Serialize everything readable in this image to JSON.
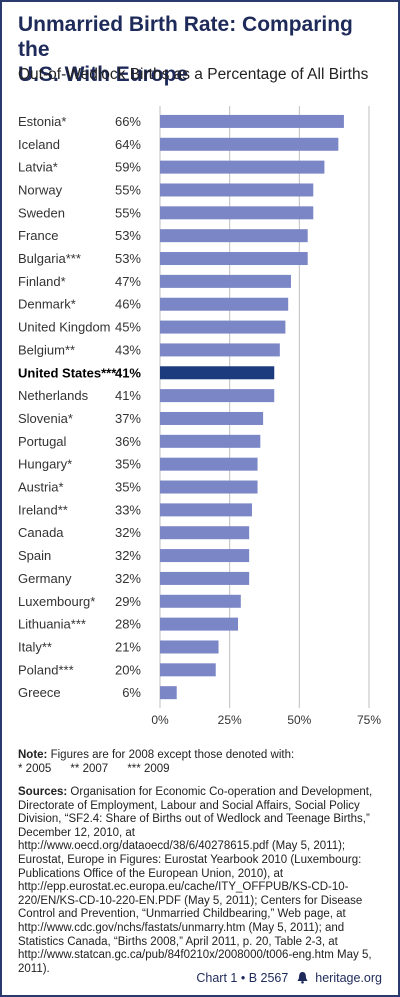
{
  "header": {
    "title_line1": "Unmarried Birth Rate: Comparing the",
    "title_line2": "U.S. With Europe",
    "subtitle": "Out-of-Wedlock Births as a Percentage of All Births"
  },
  "chart_data": {
    "type": "bar",
    "orientation": "horizontal",
    "title": "Unmarried Birth Rate: Comparing the U.S. With Europe",
    "subtitle": "Out-of-Wedlock Births as a Percentage of All Births",
    "categories": [
      "Estonia*",
      "Iceland",
      "Latvia*",
      "Norway",
      "Sweden",
      "France",
      "Bulgaria***",
      "Finland*",
      "Denmark*",
      "United Kingdom",
      "Belgium**",
      "United States***",
      "Netherlands",
      "Slovenia*",
      "Portugal",
      "Hungary*",
      "Austria*",
      "Ireland**",
      "Canada",
      "Spain",
      "Germany",
      "Luxembourg*",
      "Lithuania***",
      "Italy**",
      "Poland***",
      "Greece"
    ],
    "values": [
      66,
      64,
      59,
      55,
      55,
      53,
      53,
      47,
      46,
      45,
      43,
      41,
      41,
      37,
      36,
      35,
      35,
      33,
      32,
      32,
      32,
      29,
      28,
      21,
      20,
      6
    ],
    "value_labels": [
      "66%",
      "64%",
      "59%",
      "55%",
      "55%",
      "53%",
      "53%",
      "47%",
      "46%",
      "45%",
      "43%",
      "41%",
      "41%",
      "37%",
      "36%",
      "35%",
      "35%",
      "33%",
      "32%",
      "32%",
      "32%",
      "29%",
      "28%",
      "21%",
      "20%",
      "6%"
    ],
    "highlight": "United States***",
    "xlim": [
      0,
      75
    ],
    "xticks": [
      "0%",
      "25%",
      "50%",
      "75%"
    ],
    "xlabel": "",
    "ylabel": "",
    "grid": true,
    "colors": {
      "bar": "#7b86c6",
      "highlight": "#1c3a7e",
      "grid": "#bfbfbf"
    }
  },
  "notes": {
    "label": "Note:",
    "text": "Figures are for 2008 except those denoted with:",
    "denotations": "* 2005      ** 2007      *** 2009"
  },
  "sources": {
    "label": "Sources:",
    "text": "Organisation for Economic Co-operation and Development, Directorate of Employment, Labour and Social Affairs, Social Policy Division, “SF2.4: Share of Births out of Wedlock and Teenage Births,” December 12, 2010, at http://www.oecd.org/dataoecd/38/6/40278615.pdf (May 5, 2011); Eurostat, Europe in Figures: Eurostat Yearbook 2010 (Luxembourg: Publications Office of the European Union, 2010), at http://epp.eurostat.ec.europa.eu/cache/ITY_OFFPUB/KS-CD-10-220/EN/KS-CD-10-220-EN.PDF (May 5, 2011); Centers for Disease Control and Prevention, “Unmarried Childbearing,” Web page, at http://www.cdc.gov/nchs/fastats/unmarry.htm (May 5, 2011); and Statistics Canada, “Births 2008,” April 2011, p. 20, Table 2-3, at http://www.statcan.gc.ca/pub/84f0210x/2008000/t006-eng.htm May 5, 2011)."
  },
  "footer": {
    "chart_ref": "Chart 1 • B 2567",
    "site": "heritage.org",
    "icon": "liberty-bell-icon"
  }
}
